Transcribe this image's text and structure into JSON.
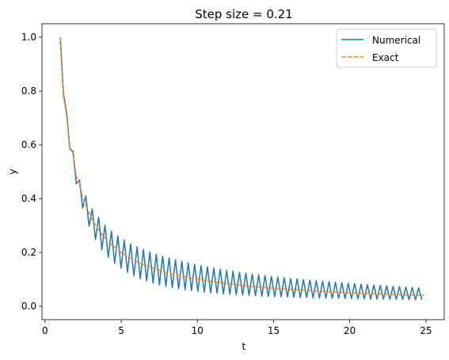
{
  "chart_data": {
    "type": "line",
    "title": "Step size = 0.21",
    "xlabel": "t",
    "ylabel": "y",
    "xlim": [
      -0.2,
      26.2
    ],
    "ylim": [
      -0.05,
      1.05
    ],
    "xticks": [
      0,
      5,
      10,
      15,
      20,
      25
    ],
    "yticks": [
      0.0,
      0.2,
      0.4,
      0.6,
      0.8,
      1.0
    ],
    "grid": false,
    "legend_position": "top-right",
    "series": [
      {
        "name": "Numerical",
        "color": "#1f77b4",
        "linestyle": "solid",
        "t": [
          1.0,
          1.21,
          1.42,
          1.63,
          1.84,
          2.05,
          2.26,
          2.47,
          2.68,
          2.89,
          3.1,
          3.31,
          3.52,
          3.73,
          3.94,
          4.15,
          4.36,
          4.57,
          4.78,
          4.99,
          5.2,
          5.41,
          5.62,
          5.83,
          6.04,
          6.25,
          6.46,
          6.67,
          6.88,
          7.09,
          7.3,
          7.51,
          7.72,
          7.93,
          8.14,
          8.35,
          8.56,
          8.77,
          8.98,
          9.19,
          9.4,
          9.61,
          9.82,
          10.03,
          10.24,
          10.45,
          10.66,
          10.87,
          11.08,
          11.29,
          11.5,
          11.71,
          11.92,
          12.13,
          12.34,
          12.55,
          12.76,
          12.97,
          13.18,
          13.39,
          13.6,
          13.81,
          14.02,
          14.23,
          14.44,
          14.65,
          14.86,
          15.07,
          15.28,
          15.49,
          15.7,
          15.91,
          16.12,
          16.33,
          16.54,
          16.75,
          16.96,
          17.17,
          17.38,
          17.59,
          17.8,
          18.01,
          18.22,
          18.43,
          18.64,
          18.85,
          19.06,
          19.27,
          19.48,
          19.69,
          19.9,
          20.11,
          20.32,
          20.53,
          20.74,
          20.95,
          21.16,
          21.37,
          21.58,
          21.79,
          22.0,
          22.21,
          22.42,
          22.63,
          22.84,
          23.05,
          23.26,
          23.47,
          23.68,
          23.89,
          24.1,
          24.31,
          24.52,
          24.73
        ],
        "y": [
          1.0,
          0.79,
          0.72,
          0.585,
          0.575,
          0.455,
          0.47,
          0.365,
          0.41,
          0.297,
          0.362,
          0.248,
          0.331,
          0.21,
          0.301,
          0.182,
          0.279,
          0.159,
          0.261,
          0.141,
          0.246,
          0.126,
          0.232,
          0.113,
          0.221,
          0.102,
          0.211,
          0.094,
          0.202,
          0.086,
          0.193,
          0.079,
          0.186,
          0.074,
          0.179,
          0.069,
          0.173,
          0.065,
          0.167,
          0.061,
          0.161,
          0.058,
          0.156,
          0.055,
          0.151,
          0.052,
          0.146,
          0.05,
          0.142,
          0.048,
          0.138,
          0.046,
          0.134,
          0.044,
          0.13,
          0.043,
          0.126,
          0.041,
          0.123,
          0.04,
          0.12,
          0.039,
          0.117,
          0.037,
          0.114,
          0.036,
          0.111,
          0.035,
          0.108,
          0.035,
          0.106,
          0.034,
          0.103,
          0.033,
          0.101,
          0.032,
          0.099,
          0.032,
          0.097,
          0.031,
          0.095,
          0.03,
          0.093,
          0.03,
          0.091,
          0.029,
          0.089,
          0.029,
          0.087,
          0.028,
          0.085,
          0.028,
          0.084,
          0.027,
          0.082,
          0.027,
          0.08,
          0.026,
          0.079,
          0.026,
          0.077,
          0.026,
          0.076,
          0.025,
          0.074,
          0.025,
          0.073,
          0.025,
          0.071,
          0.024,
          0.07,
          0.024,
          0.068,
          0.024
        ]
      },
      {
        "name": "Exact",
        "color": "#ff7f0e",
        "linestyle": "dashed",
        "t": [
          1.0,
          1.21,
          1.42,
          1.63,
          1.84,
          2.05,
          2.26,
          2.47,
          2.68,
          2.89,
          3.1,
          3.31,
          3.52,
          3.73,
          3.94,
          4.15,
          4.36,
          4.57,
          4.78,
          4.99,
          5.5,
          6.0,
          6.5,
          7.0,
          8.0,
          9.0,
          10.0,
          11.0,
          12.0,
          13.0,
          14.0,
          15.0,
          16.0,
          17.0,
          18.0,
          19.0,
          20.0,
          21.0,
          22.0,
          23.0,
          24.0,
          24.9
        ],
        "y": [
          1.0,
          0.78,
          0.71,
          0.59,
          0.568,
          0.48,
          0.46,
          0.4,
          0.375,
          0.346,
          0.32,
          0.302,
          0.284,
          0.268,
          0.254,
          0.241,
          0.229,
          0.219,
          0.209,
          0.2,
          0.182,
          0.167,
          0.154,
          0.143,
          0.125,
          0.111,
          0.1,
          0.091,
          0.083,
          0.077,
          0.071,
          0.067,
          0.0625,
          0.0588,
          0.0556,
          0.0526,
          0.05,
          0.0476,
          0.0455,
          0.0435,
          0.0417,
          0.0402
        ]
      }
    ]
  }
}
